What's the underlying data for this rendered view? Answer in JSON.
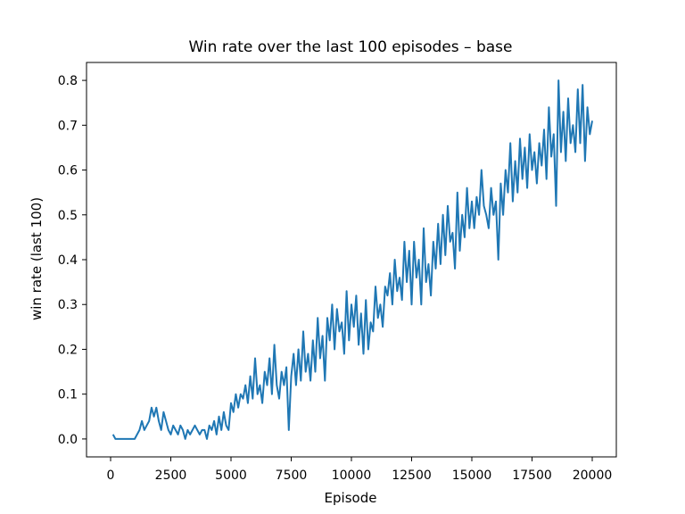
{
  "chart_data": {
    "type": "line",
    "title": "Win rate over the last 100 episodes – base",
    "xlabel": "Episode",
    "ylabel": "win rate (last 100)",
    "xlim": [
      -1000,
      21000
    ],
    "ylim": [
      -0.04,
      0.84
    ],
    "x_ticks": [
      0,
      2500,
      5000,
      7500,
      10000,
      12500,
      15000,
      17500,
      20000
    ],
    "x_tick_labels": [
      "0",
      "2500",
      "5000",
      "7500",
      "10000",
      "12500",
      "15000",
      "17500",
      "20000"
    ],
    "y_ticks": [
      0.0,
      0.1,
      0.2,
      0.3,
      0.4,
      0.5,
      0.6,
      0.7,
      0.8
    ],
    "y_tick_labels": [
      "0.0",
      "0.1",
      "0.2",
      "0.3",
      "0.4",
      "0.5",
      "0.6",
      "0.7",
      "0.8"
    ],
    "grid": false,
    "series": [
      {
        "name": "win rate (last 100)",
        "color": "#1f77b4",
        "x": [
          100,
          200,
          400,
          600,
          800,
          1000,
          1100,
          1200,
          1300,
          1400,
          1500,
          1600,
          1700,
          1800,
          1900,
          2000,
          2100,
          2200,
          2300,
          2400,
          2500,
          2600,
          2700,
          2800,
          2900,
          3000,
          3100,
          3200,
          3300,
          3400,
          3500,
          3600,
          3700,
          3800,
          3900,
          4000,
          4100,
          4200,
          4300,
          4400,
          4500,
          4600,
          4700,
          4800,
          4900,
          5000,
          5100,
          5200,
          5300,
          5400,
          5500,
          5600,
          5700,
          5800,
          5900,
          6000,
          6100,
          6200,
          6300,
          6400,
          6500,
          6600,
          6700,
          6800,
          6900,
          7000,
          7100,
          7200,
          7300,
          7400,
          7500,
          7600,
          7700,
          7800,
          7900,
          8000,
          8100,
          8200,
          8300,
          8400,
          8500,
          8600,
          8700,
          8800,
          8900,
          9000,
          9100,
          9200,
          9300,
          9400,
          9500,
          9600,
          9700,
          9800,
          9900,
          10000,
          10100,
          10200,
          10300,
          10400,
          10500,
          10600,
          10700,
          10800,
          10900,
          11000,
          11100,
          11200,
          11300,
          11400,
          11500,
          11600,
          11700,
          11800,
          11900,
          12000,
          12100,
          12200,
          12300,
          12400,
          12500,
          12600,
          12700,
          12800,
          12900,
          13000,
          13100,
          13200,
          13300,
          13400,
          13500,
          13600,
          13700,
          13800,
          13900,
          14000,
          14100,
          14200,
          14300,
          14400,
          14500,
          14600,
          14700,
          14800,
          14900,
          15000,
          15100,
          15200,
          15300,
          15400,
          15500,
          15600,
          15700,
          15800,
          15900,
          16000,
          16100,
          16200,
          16300,
          16400,
          16500,
          16600,
          16700,
          16800,
          16900,
          17000,
          17100,
          17200,
          17300,
          17400,
          17500,
          17600,
          17700,
          17800,
          17900,
          18000,
          18100,
          18200,
          18300,
          18400,
          18500,
          18600,
          18700,
          18800,
          18900,
          19000,
          19100,
          19200,
          19300,
          19400,
          19500,
          19600,
          19700,
          19800,
          19900,
          20000
        ],
        "y": [
          0.01,
          0.0,
          0.0,
          0.0,
          0.0,
          0.0,
          0.01,
          0.02,
          0.04,
          0.02,
          0.03,
          0.04,
          0.07,
          0.05,
          0.07,
          0.04,
          0.02,
          0.06,
          0.04,
          0.02,
          0.01,
          0.03,
          0.02,
          0.01,
          0.03,
          0.02,
          0.0,
          0.02,
          0.01,
          0.02,
          0.03,
          0.02,
          0.01,
          0.02,
          0.02,
          0.0,
          0.03,
          0.02,
          0.04,
          0.01,
          0.05,
          0.02,
          0.06,
          0.03,
          0.02,
          0.08,
          0.06,
          0.1,
          0.07,
          0.1,
          0.09,
          0.12,
          0.08,
          0.14,
          0.09,
          0.18,
          0.1,
          0.12,
          0.08,
          0.15,
          0.12,
          0.18,
          0.1,
          0.21,
          0.12,
          0.09,
          0.15,
          0.12,
          0.16,
          0.02,
          0.14,
          0.19,
          0.12,
          0.2,
          0.13,
          0.24,
          0.15,
          0.19,
          0.13,
          0.22,
          0.15,
          0.27,
          0.18,
          0.23,
          0.13,
          0.27,
          0.22,
          0.3,
          0.2,
          0.29,
          0.24,
          0.26,
          0.19,
          0.33,
          0.22,
          0.3,
          0.25,
          0.32,
          0.21,
          0.28,
          0.19,
          0.31,
          0.2,
          0.26,
          0.24,
          0.34,
          0.27,
          0.3,
          0.25,
          0.34,
          0.32,
          0.37,
          0.3,
          0.4,
          0.33,
          0.36,
          0.31,
          0.44,
          0.35,
          0.42,
          0.3,
          0.44,
          0.36,
          0.4,
          0.3,
          0.47,
          0.35,
          0.39,
          0.32,
          0.44,
          0.38,
          0.48,
          0.39,
          0.5,
          0.41,
          0.52,
          0.44,
          0.46,
          0.38,
          0.55,
          0.42,
          0.5,
          0.45,
          0.56,
          0.47,
          0.53,
          0.47,
          0.54,
          0.5,
          0.6,
          0.52,
          0.5,
          0.47,
          0.56,
          0.5,
          0.53,
          0.4,
          0.57,
          0.5,
          0.6,
          0.55,
          0.66,
          0.53,
          0.62,
          0.55,
          0.67,
          0.58,
          0.65,
          0.56,
          0.68,
          0.6,
          0.64,
          0.57,
          0.66,
          0.61,
          0.69,
          0.58,
          0.74,
          0.63,
          0.68,
          0.52,
          0.8,
          0.64,
          0.73,
          0.62,
          0.76,
          0.66,
          0.7,
          0.64,
          0.78,
          0.66,
          0.79,
          0.62,
          0.74,
          0.68,
          0.71
        ]
      }
    ]
  }
}
